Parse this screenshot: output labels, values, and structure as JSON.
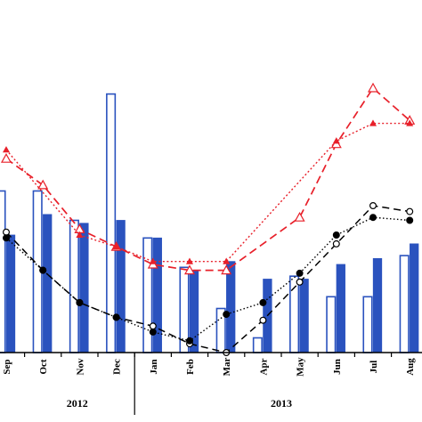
{
  "chart_data": {
    "type": "bar",
    "title": "",
    "xlabel": "",
    "ylabel": "",
    "grid": false,
    "legend": "none",
    "ylim": [
      0,
      100
    ],
    "categories": [
      "Sep",
      "Oct",
      "Nov",
      "Dec",
      "Jan",
      "Feb",
      "Mar",
      "Apr",
      "May",
      "Jun",
      "Jul",
      "Aug"
    ],
    "year_groups": [
      {
        "label": "2012",
        "categories": [
          "Sep",
          "Oct",
          "Nov",
          "Dec"
        ]
      },
      {
        "label": "2013",
        "categories": [
          "Jan",
          "Feb",
          "Mar",
          "Apr",
          "May",
          "Jun",
          "Jul",
          "Aug"
        ]
      }
    ],
    "bar_series": [
      {
        "style": "hollow",
        "color": "#2a52be",
        "values": [
          55,
          55,
          45,
          88,
          39,
          29,
          15,
          5,
          26,
          19,
          19,
          33
        ]
      },
      {
        "style": "solid",
        "color": "#2a52be",
        "values": [
          40,
          47,
          44,
          45,
          39,
          28,
          31,
          25,
          25,
          30,
          32,
          37
        ]
      }
    ],
    "line_series": [
      {
        "style": "red-dashed-hollow-triangle",
        "color": "#e8202a",
        "values": [
          66,
          57,
          42,
          36,
          30,
          28,
          28,
          null,
          46,
          71,
          90,
          79
        ]
      },
      {
        "style": "red-dotted-filled-triangle",
        "color": "#e8202a",
        "values": [
          69,
          null,
          40,
          36,
          31,
          31,
          31,
          null,
          null,
          72,
          78,
          78
        ]
      },
      {
        "style": "black-dashed-hollow-circle",
        "color": "#000000",
        "values": [
          41,
          28,
          17,
          12,
          9,
          3,
          0,
          11,
          24,
          37,
          50,
          48
        ]
      },
      {
        "style": "black-dotted-filled-circle",
        "color": "#000000",
        "values": [
          39,
          28,
          17,
          12,
          7,
          4,
          13,
          17,
          27,
          40,
          46,
          45
        ]
      }
    ]
  }
}
